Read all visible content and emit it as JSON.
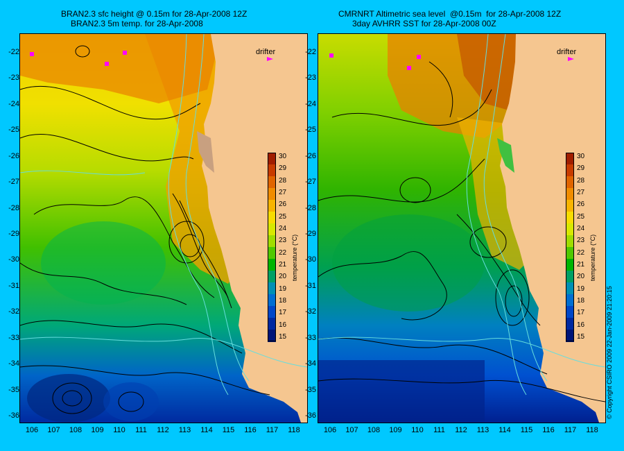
{
  "left": {
    "title_line1": "BRAN2.3 sfc height @ 0.15m for 28-Apr-2008 12Z",
    "title_line2": "BRAN2.3 5m temp. for 28-Apr-2008",
    "drifter_label": "drifter"
  },
  "right": {
    "title_line1": "CMRNRT Altimetric sea level  @0.15m  for 28-Apr-2008 12Z",
    "title_line2": "3day AVHRR SST for 28-Apr-2008 00Z",
    "drifter_label": "drifter"
  },
  "axes": {
    "lat_labels": [
      "-22",
      "-23",
      "-24",
      "-25",
      "-26",
      "-27",
      "-28",
      "-29",
      "-30",
      "-31",
      "-32",
      "-33",
      "-34",
      "-35",
      "-36"
    ],
    "lon_labels": [
      "106",
      "107",
      "108",
      "109",
      "110",
      "111",
      "112",
      "113",
      "114",
      "115",
      "116",
      "117",
      "118"
    ]
  },
  "colorbar": {
    "title": "temperature (°C)",
    "labels": [
      "30",
      "29",
      "28",
      "27",
      "26",
      "25",
      "24",
      "23",
      "22",
      "21",
      "20",
      "19",
      "18",
      "17",
      "16",
      "15"
    ],
    "colors": [
      "#a01e00",
      "#c83c00",
      "#e06400",
      "#f08c00",
      "#f8b400",
      "#f8dc00",
      "#d8e800",
      "#a0dc00",
      "#50c800",
      "#00b400",
      "#00a064",
      "#0090b4",
      "#006ed2",
      "#0046c8",
      "#0028a0",
      "#001478"
    ]
  },
  "copyright": "© Copyright CSIRO 2009   22-Jan-2009 21:20:15",
  "colors": {
    "background": "#00c8ff",
    "land": "#f5c690",
    "contour": "#000000",
    "bathymetry": "#66dddd",
    "drifter": "#ff00ff"
  }
}
